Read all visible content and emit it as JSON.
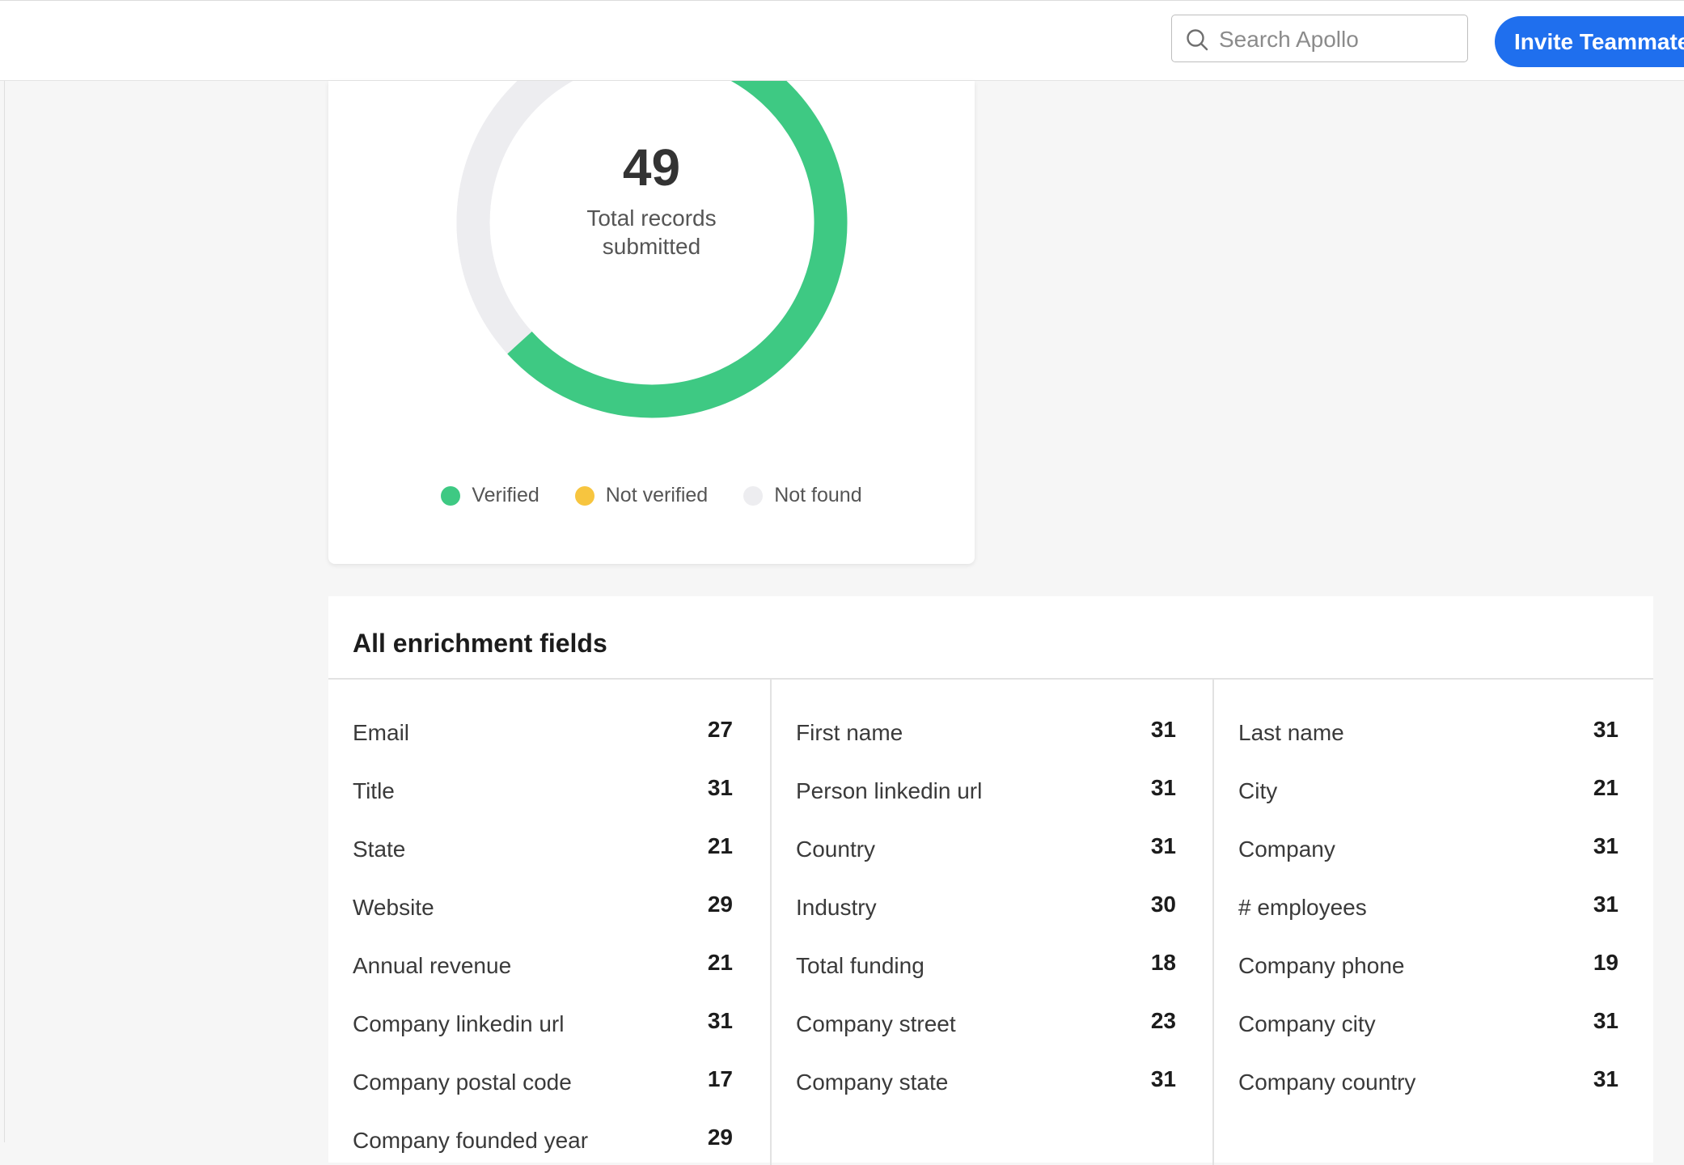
{
  "header": {
    "search_placeholder": "Search Apollo",
    "invite_label": "Invite Teammate"
  },
  "summary": {
    "total": "49",
    "caption_line1": "Total records",
    "caption_line2": "submitted",
    "legend": [
      {
        "label": "Verified",
        "color": "#3ec983"
      },
      {
        "label": "Not verified",
        "color": "#f7c53f"
      },
      {
        "label": "Not found",
        "color": "#ededf0"
      }
    ]
  },
  "chart_data": {
    "type": "pie",
    "title": "",
    "total": 49,
    "slices": [
      {
        "label": "Verified",
        "value": 31,
        "color": "#3ec983"
      },
      {
        "label": "Not verified",
        "value": 0,
        "color": "#f7c53f"
      },
      {
        "label": "Not found",
        "value": 18,
        "color": "#ededf0"
      }
    ]
  },
  "fields": {
    "title": "All enrichment fields",
    "columns": [
      [
        {
          "label": "Email",
          "count": "27"
        },
        {
          "label": "Title",
          "count": "31"
        },
        {
          "label": "State",
          "count": "21"
        },
        {
          "label": "Website",
          "count": "29"
        },
        {
          "label": "Annual revenue",
          "count": "21"
        },
        {
          "label": "Company linkedin url",
          "count": "31"
        },
        {
          "label": "Company postal code",
          "count": "17"
        },
        {
          "label": "Company founded year",
          "count": "29"
        }
      ],
      [
        {
          "label": "First name",
          "count": "31"
        },
        {
          "label": "Person linkedin url",
          "count": "31"
        },
        {
          "label": "Country",
          "count": "31"
        },
        {
          "label": "Industry",
          "count": "30"
        },
        {
          "label": "Total funding",
          "count": "18"
        },
        {
          "label": "Company street",
          "count": "23"
        },
        {
          "label": "Company state",
          "count": "31"
        }
      ],
      [
        {
          "label": "Last name",
          "count": "31"
        },
        {
          "label": "City",
          "count": "21"
        },
        {
          "label": "Company",
          "count": "31"
        },
        {
          "label": "# employees",
          "count": "31"
        },
        {
          "label": "Company phone",
          "count": "19"
        },
        {
          "label": "Company city",
          "count": "31"
        },
        {
          "label": "Company country",
          "count": "31"
        }
      ]
    ]
  }
}
